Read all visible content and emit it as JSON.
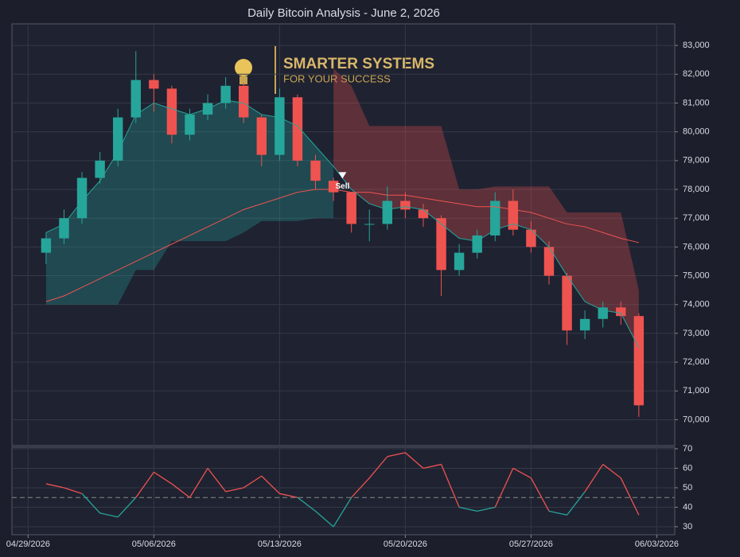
{
  "title": "Daily Bitcoin Analysis - June 2, 2026",
  "logo": {
    "title": "SMARTER SYSTEMS",
    "subtitle": "FOR YOUR SUCCESS"
  },
  "chart_data": [
    {
      "type": "candlestick",
      "x": [
        1,
        2,
        3,
        4,
        5,
        6,
        7,
        8,
        9,
        10,
        11,
        12,
        13,
        14,
        15,
        16,
        17,
        18,
        19,
        20,
        21,
        22,
        23,
        24,
        25,
        26,
        27,
        28,
        29,
        30,
        31,
        32,
        33,
        34
      ],
      "open": [
        75800,
        76300,
        77000,
        78400,
        79000,
        80500,
        81800,
        81500,
        79900,
        80600,
        81000,
        81600,
        80500,
        79200,
        81200,
        79000,
        78300,
        77900,
        76800,
        76800,
        77600,
        77300,
        77000,
        75200,
        75800,
        76400,
        77600,
        76600,
        76000,
        75000,
        73100,
        73500,
        73900,
        73600
      ],
      "high": [
        76500,
        77300,
        78600,
        79300,
        80800,
        82800,
        82000,
        81600,
        80800,
        81300,
        81900,
        81700,
        80600,
        81500,
        81300,
        79200,
        78400,
        77900,
        77300,
        78100,
        77900,
        77500,
        77100,
        76100,
        76600,
        77900,
        78000,
        76900,
        76200,
        75100,
        73800,
        74100,
        74100,
        73700
      ],
      "low": [
        75400,
        76100,
        76800,
        78200,
        78800,
        80300,
        80700,
        79600,
        79700,
        80400,
        80800,
        80300,
        78800,
        79000,
        78800,
        78000,
        77600,
        76500,
        76200,
        76600,
        77000,
        76700,
        74300,
        75000,
        75600,
        76200,
        76400,
        75800,
        74700,
        72600,
        72800,
        73200,
        73300,
        70100
      ],
      "close": [
        76300,
        77000,
        78400,
        79000,
        80500,
        81800,
        81500,
        79900,
        80600,
        81000,
        81600,
        80500,
        79200,
        81200,
        79000,
        78300,
        77900,
        76800,
        76800,
        77600,
        77300,
        77000,
        75200,
        75800,
        76400,
        77600,
        76600,
        76000,
        75000,
        73100,
        73500,
        73900,
        73600,
        70500
      ],
      "up_color": "#26a69a",
      "down_color": "#ef5350",
      "lines": [
        {
          "color": "#26a69a",
          "values": [
            76500,
            76800,
            77600,
            78300,
            79300,
            80600,
            81000,
            80800,
            80600,
            80800,
            81100,
            81000,
            80600,
            80500,
            80200,
            79500,
            78800,
            78000,
            77500,
            77300,
            77400,
            77300,
            76800,
            76300,
            76200,
            76600,
            76800,
            76600,
            76000,
            75000,
            74100,
            73800,
            73700,
            72500
          ]
        },
        {
          "color": "#ef5350",
          "values": [
            74100,
            74300,
            74600,
            74900,
            75200,
            75500,
            75800,
            76100,
            76400,
            76700,
            77000,
            77300,
            77500,
            77700,
            77900,
            78000,
            78000,
            77900,
            77900,
            77800,
            77800,
            77700,
            77600,
            77500,
            77400,
            77400,
            77300,
            77200,
            77000,
            76800,
            76700,
            76500,
            76300,
            76150
          ]
        }
      ],
      "bands": [
        {
          "line": 0,
          "color": "#26a69a",
          "edge": [
            74000,
            74000,
            74000,
            74000,
            74000,
            75200,
            75200,
            76200,
            76200,
            76200,
            76200,
            76500,
            76900,
            76900,
            76900,
            77000,
            77000,
            null,
            null,
            null,
            null,
            null,
            null,
            null,
            null,
            null,
            null,
            null,
            null,
            null,
            null,
            null,
            null,
            null
          ]
        },
        {
          "line": 0,
          "color": "#ef5350",
          "edge": [
            null,
            null,
            null,
            null,
            null,
            null,
            null,
            null,
            null,
            null,
            null,
            null,
            null,
            null,
            null,
            null,
            82200,
            81600,
            80200,
            80200,
            80200,
            80200,
            80200,
            78000,
            78000,
            78100,
            78100,
            78100,
            78100,
            77200,
            77200,
            77200,
            77200,
            74500
          ]
        }
      ],
      "annotation": {
        "text": "Sell",
        "x": 17.5,
        "y": 78100
      },
      "xlim": [
        -0.9,
        36
      ],
      "ylim": [
        69100,
        83750
      ],
      "yticks": [
        {
          "value": 70000,
          "label": "70,000"
        },
        {
          "value": 71000,
          "label": "71,000"
        },
        {
          "value": 72000,
          "label": "72,000"
        },
        {
          "value": 73000,
          "label": "73,000"
        },
        {
          "value": 74000,
          "label": "74,000"
        },
        {
          "value": 75000,
          "label": "75,000"
        },
        {
          "value": 76000,
          "label": "76,000"
        },
        {
          "value": 77000,
          "label": "77,000"
        },
        {
          "value": 78000,
          "label": "78,000"
        },
        {
          "value": 79000,
          "label": "79,000"
        },
        {
          "value": 80000,
          "label": "80,000"
        },
        {
          "value": 81000,
          "label": "81,000"
        },
        {
          "value": 82000,
          "label": "82,000"
        },
        {
          "value": 83000,
          "label": "83,000"
        }
      ],
      "grid": true
    },
    {
      "type": "line",
      "x": [
        1,
        2,
        3,
        4,
        5,
        6,
        7,
        8,
        9,
        10,
        11,
        12,
        13,
        14,
        15,
        16,
        17,
        18,
        19,
        20,
        21,
        22,
        23,
        24,
        25,
        26,
        27,
        28,
        29,
        30,
        31,
        32,
        33,
        34
      ],
      "values": [
        52,
        50,
        47,
        37,
        35,
        45,
        58,
        52,
        45,
        60,
        48,
        50,
        56,
        47,
        45,
        38,
        30,
        45,
        55,
        66,
        68,
        60,
        62,
        40,
        38,
        40,
        60,
        55,
        38,
        36,
        48,
        62,
        55,
        36
      ],
      "above_color": "#ef5350",
      "below_color": "#26a69a",
      "threshold": 45,
      "xlim": [
        -0.9,
        36
      ],
      "ylim": [
        25.9,
        70.8
      ],
      "yticks": [
        30,
        40,
        50,
        60,
        70
      ],
      "xticks": [
        {
          "value": 0,
          "label": "04/29/2026"
        },
        {
          "value": 7,
          "label": "05/06/2026"
        },
        {
          "value": 14,
          "label": "05/13/2026"
        },
        {
          "value": 21,
          "label": "05/20/2026"
        },
        {
          "value": 28,
          "label": "05/27/2026"
        },
        {
          "value": 35,
          "label": "06/03/2026"
        }
      ],
      "grid": true
    }
  ]
}
